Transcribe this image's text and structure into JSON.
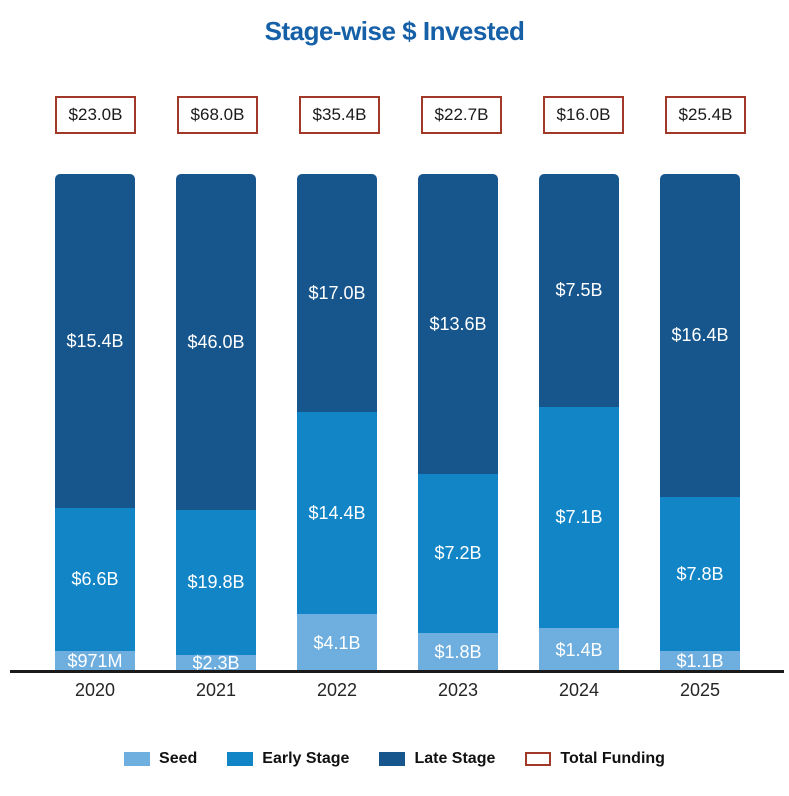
{
  "title": "Stage-wise $ Invested",
  "colors": {
    "title": "#1660A8",
    "seed": "#6FAFDF",
    "early_stage": "#1285C6",
    "late_stage": "#17568C",
    "total_border": "#A03928",
    "axis": "#1a1a1a",
    "bar_label": "#ffffff"
  },
  "legend": [
    {
      "label": "Seed",
      "swatch": "seed",
      "type": "fill"
    },
    {
      "label": "Early Stage",
      "swatch": "early_stage",
      "type": "fill"
    },
    {
      "label": "Late Stage",
      "swatch": "late_stage",
      "type": "fill"
    },
    {
      "label": "Total Funding",
      "swatch": "total_border",
      "type": "outline"
    }
  ],
  "chart_data": {
    "type": "bar",
    "stacked": true,
    "bars_equal_height": true,
    "title": "Stage-wise $ Invested",
    "xlabel": "",
    "ylabel": "",
    "grid": false,
    "legend_position": "bottom",
    "categories": [
      "2020",
      "2021",
      "2022",
      "2023",
      "2024",
      "2025"
    ],
    "total_funding_labels": [
      "$23.0B",
      "$68.0B",
      "$35.4B",
      "$22.7B",
      "$16.0B",
      "$25.4B"
    ],
    "total_funding_billions": [
      23.0,
      68.0,
      35.4,
      22.7,
      16.0,
      25.4
    ],
    "series": [
      {
        "name": "Seed",
        "color_key": "seed",
        "values_billions": [
          0.971,
          2.3,
          4.1,
          1.8,
          1.4,
          1.1
        ],
        "labels": [
          "$971M",
          "$2.3B",
          "$4.1B",
          "$1.8B",
          "$1.4B",
          "$1.1B"
        ]
      },
      {
        "name": "Early Stage",
        "color_key": "early_stage",
        "values_billions": [
          6.6,
          19.8,
          14.4,
          7.2,
          7.1,
          7.8
        ],
        "labels": [
          "$6.6B",
          "$19.8B",
          "$14.4B",
          "$7.2B",
          "$7.1B",
          "$7.8B"
        ]
      },
      {
        "name": "Late Stage",
        "color_key": "late_stage",
        "values_billions": [
          15.4,
          46.0,
          17.0,
          13.6,
          7.5,
          16.4
        ],
        "labels": [
          "$15.4B",
          "$46.0B",
          "$17.0B",
          "$13.6B",
          "$7.5B",
          "$16.4B"
        ]
      }
    ]
  }
}
